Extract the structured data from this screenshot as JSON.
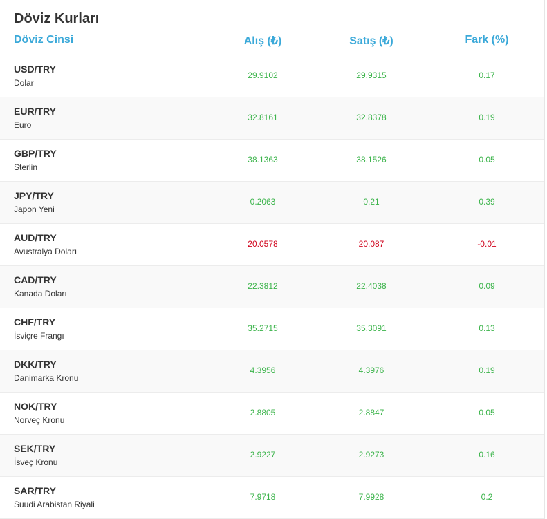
{
  "header": {
    "title": "Döviz Kurları",
    "columns": [
      "Döviz Cinsi",
      "Alış (₺)",
      "Satış (₺)",
      "Fark (%)"
    ]
  },
  "colors": {
    "header": "#3ba9d9",
    "up": "#3cb44b",
    "down": "#d0021b"
  },
  "table": {
    "rows": [
      {
        "code": "USD/TRY",
        "name": "Dolar",
        "buy": "29.9102",
        "sell": "29.9315",
        "change": "0.17",
        "color": "up"
      },
      {
        "code": "EUR/TRY",
        "name": "Euro",
        "buy": "32.8161",
        "sell": "32.8378",
        "change": "0.19",
        "color": "up"
      },
      {
        "code": "GBP/TRY",
        "name": "Sterlin",
        "buy": "38.1363",
        "sell": "38.1526",
        "change": "0.05",
        "color": "up"
      },
      {
        "code": "JPY/TRY",
        "name": "Japon Yeni",
        "buy": "0.2063",
        "sell": "0.21",
        "change": "0.39",
        "color": "up"
      },
      {
        "code": "AUD/TRY",
        "name": "Avustralya Doları",
        "buy": "20.0578",
        "sell": "20.087",
        "change": "-0.01",
        "color": "down"
      },
      {
        "code": "CAD/TRY",
        "name": "Kanada Doları",
        "buy": "22.3812",
        "sell": "22.4038",
        "change": "0.09",
        "color": "up"
      },
      {
        "code": "CHF/TRY",
        "name": "İsviçre Frangı",
        "buy": "35.2715",
        "sell": "35.3091",
        "change": "0.13",
        "color": "up"
      },
      {
        "code": "DKK/TRY",
        "name": "Danimarka Kronu",
        "buy": "4.3956",
        "sell": "4.3976",
        "change": "0.19",
        "color": "up"
      },
      {
        "code": "NOK/TRY",
        "name": "Norveç Kronu",
        "buy": "2.8805",
        "sell": "2.8847",
        "change": "0.05",
        "color": "up"
      },
      {
        "code": "SEK/TRY",
        "name": "İsveç Kronu",
        "buy": "2.9227",
        "sell": "2.9273",
        "change": "0.16",
        "color": "up"
      },
      {
        "code": "SAR/TRY",
        "name": "Suudi Arabistan Riyali",
        "buy": "7.9718",
        "sell": "7.9928",
        "change": "0.2",
        "color": "up"
      }
    ]
  }
}
